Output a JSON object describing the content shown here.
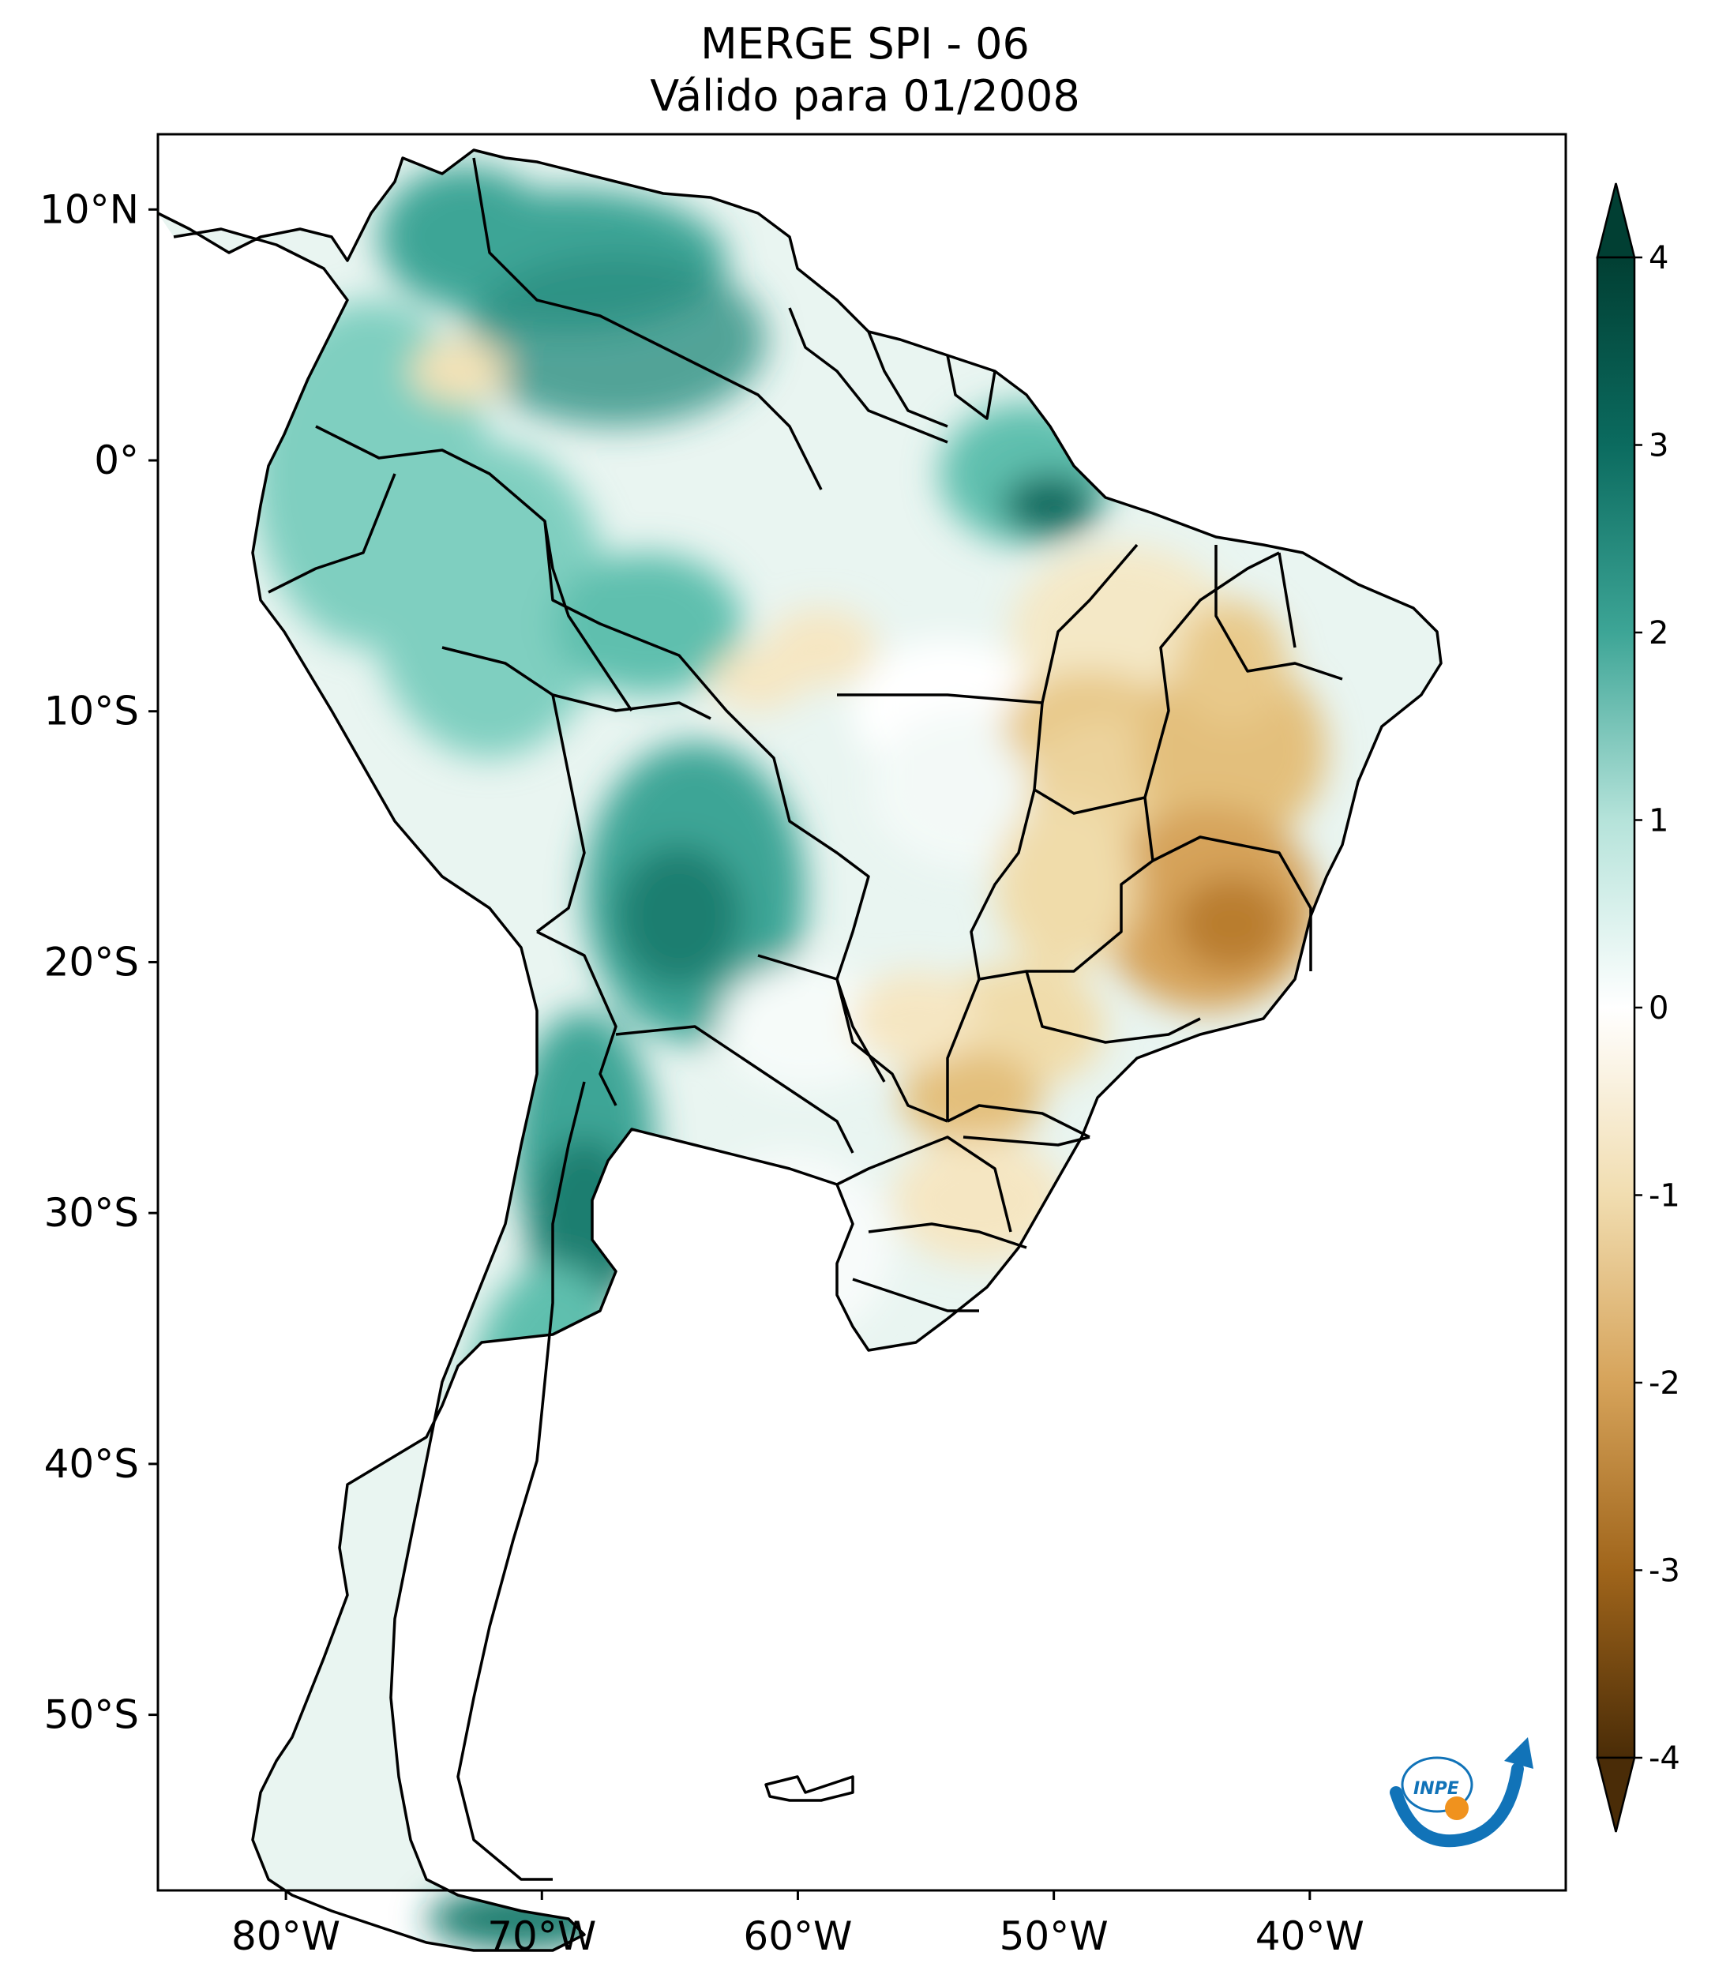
{
  "title": {
    "line1": "MERGE   SPI - 06",
    "line2": "Válido para 01/2008"
  },
  "map": {
    "lon_range": [
      -85,
      -30
    ],
    "lat_range": [
      -57,
      13
    ],
    "lon_ticks": [
      {
        "value": -80,
        "label": "80°W"
      },
      {
        "value": -70,
        "label": "70°W"
      },
      {
        "value": -60,
        "label": "60°W"
      },
      {
        "value": -50,
        "label": "50°W"
      },
      {
        "value": -40,
        "label": "40°W"
      }
    ],
    "lat_ticks": [
      {
        "value": 10,
        "label": "10°N"
      },
      {
        "value": 0,
        "label": "0°"
      },
      {
        "value": -10,
        "label": "10°S"
      },
      {
        "value": -20,
        "label": "20°S"
      },
      {
        "value": -30,
        "label": "30°S"
      },
      {
        "value": -40,
        "label": "40°S"
      },
      {
        "value": -50,
        "label": "50°S"
      }
    ]
  },
  "colorbar": {
    "range": [
      -4,
      4
    ],
    "extend": "both",
    "ticks": [
      "4",
      "3",
      "2",
      "1",
      "0",
      "-1",
      "-2",
      "-3",
      "-4"
    ],
    "colors": {
      "high_4": "#013f33",
      "high_3": "#0b6b5f",
      "high_2": "#3da596",
      "high_1": "#b5e3da",
      "zero": "#ffffff",
      "low_1": "#f1ddb0",
      "low_2": "#d6a35a",
      "low_3": "#a0651b",
      "low_4": "#4a2c07"
    }
  },
  "logo": {
    "text": "INPE",
    "colors": {
      "arc": "#1173b8",
      "dot": "#f0921e"
    }
  }
}
